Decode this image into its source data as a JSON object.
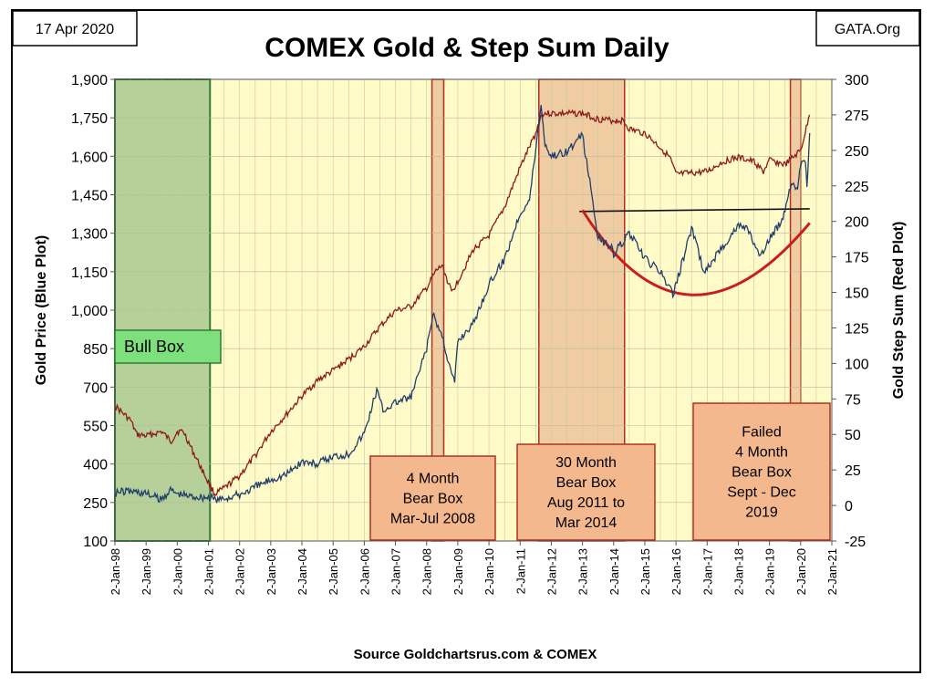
{
  "chart_data": {
    "type": "line",
    "title": "COMEX Gold & Step Sum Daily",
    "date_label": "17 Apr 2020",
    "site_label": "GATA.Org",
    "source_label": "Source Goldchartsrus.com & COMEX",
    "ylabel_left": "Gold Price    (Blue Plot)",
    "ylabel_right": "Gold Step Sum    (Red Plot)",
    "xlabel": "",
    "y_left": {
      "ylim": [
        100,
        1900
      ],
      "ticks": [
        "100",
        "250",
        "400",
        "550",
        "700",
        "850",
        "1,000",
        "1,150",
        "1,300",
        "1,450",
        "1,600",
        "1,750",
        "1,900"
      ]
    },
    "y_right": {
      "ylim": [
        -25,
        300
      ],
      "ticks": [
        "-25",
        "0",
        "25",
        "50",
        "75",
        "100",
        "125",
        "150",
        "175",
        "200",
        "225",
        "250",
        "275",
        "300"
      ]
    },
    "x_range": [
      1998.0,
      2021.0
    ],
    "x_ticks": [
      "2-Jan-98",
      "2-Jan-99",
      "2-Jan-00",
      "2-Jan-01",
      "2-Jan-02",
      "2-Jan-03",
      "2-Jan-04",
      "2-Jan-05",
      "2-Jan-06",
      "2-Jan-07",
      "2-Jan-08",
      "2-Jan-09",
      "2-Jan-10",
      "2-Jan-11",
      "2-Jan-12",
      "2-Jan-13",
      "2-Jan-14",
      "2-Jan-15",
      "2-Jan-16",
      "2-Jan-17",
      "2-Jan-18",
      "2-Jan-19",
      "2-Jan-20",
      "2-Jan-21"
    ],
    "grid": true,
    "colors": {
      "gold": "#1f3d6b",
      "step_sum": "#8b1a1a",
      "plot_bg": "#fffbc8",
      "bull_box": "#a8c890",
      "bear_box": "#e8b890",
      "label_box": "#f4b88e",
      "bull_label": "#7de07d",
      "trend_curve": "#c81e1e",
      "resistance": "#111111"
    },
    "series": [
      {
        "name": "Gold Price (Blue Plot)",
        "axis": "left",
        "x": [
          1998.0,
          1998.5,
          1999.0,
          1999.5,
          1999.75,
          2000.0,
          2000.4,
          2001.0,
          2001.3,
          2002.0,
          2002.5,
          2003.0,
          2003.5,
          2004.0,
          2004.5,
          2005.0,
          2005.5,
          2006.0,
          2006.4,
          2006.6,
          2007.0,
          2007.5,
          2008.0,
          2008.2,
          2008.5,
          2008.8,
          2008.9,
          2009.0,
          2009.5,
          2010.0,
          2010.5,
          2011.0,
          2011.3,
          2011.67,
          2011.8,
          2012.0,
          2012.5,
          2013.0,
          2013.3,
          2013.5,
          2013.9,
          2014.0,
          2014.5,
          2015.0,
          2015.5,
          2015.9,
          2016.0,
          2016.5,
          2016.9,
          2017.0,
          2017.5,
          2018.0,
          2018.3,
          2018.7,
          2019.0,
          2019.4,
          2019.7,
          2019.9,
          2020.0,
          2020.15,
          2020.2,
          2020.29
        ],
        "y": [
          290,
          295,
          285,
          260,
          300,
          285,
          275,
          270,
          260,
          280,
          310,
          340,
          360,
          410,
          400,
          430,
          440,
          520,
          690,
          610,
          640,
          660,
          850,
          980,
          900,
          750,
          720,
          880,
          950,
          1100,
          1200,
          1380,
          1430,
          1800,
          1650,
          1600,
          1620,
          1680,
          1450,
          1280,
          1250,
          1220,
          1300,
          1200,
          1150,
          1060,
          1100,
          1320,
          1150,
          1160,
          1250,
          1330,
          1320,
          1200,
          1280,
          1350,
          1500,
          1480,
          1560,
          1580,
          1480,
          1690
        ]
      },
      {
        "name": "Gold Step Sum (Red Plot)",
        "axis": "right",
        "x": [
          1998.0,
          1998.5,
          1998.7,
          1999.0,
          1999.5,
          1999.8,
          2000.0,
          2000.2,
          2000.5,
          2000.8,
          2001.0,
          2001.2,
          2001.5,
          2002.0,
          2002.5,
          2003.0,
          2003.5,
          2004.0,
          2004.5,
          2005.0,
          2005.5,
          2006.0,
          2006.5,
          2007.0,
          2007.5,
          2008.0,
          2008.3,
          2008.5,
          2008.8,
          2009.0,
          2009.5,
          2010.0,
          2010.5,
          2011.0,
          2011.5,
          2011.7,
          2012.0,
          2012.5,
          2013.0,
          2013.5,
          2014.0,
          2014.3,
          2014.5,
          2015.0,
          2015.5,
          2015.8,
          2016.0,
          2016.5,
          2017.0,
          2017.5,
          2018.0,
          2018.5,
          2018.8,
          2019.0,
          2019.5,
          2020.0,
          2020.29
        ],
        "y": [
          70,
          60,
          50,
          49,
          52,
          45,
          52,
          52,
          38,
          25,
          16,
          8,
          12,
          21,
          35,
          52,
          64,
          77,
          88,
          95,
          103,
          112,
          126,
          137,
          140,
          153,
          165,
          169,
          150,
          158,
          180,
          190,
          210,
          238,
          262,
          276,
          276,
          276,
          276,
          272,
          271,
          271,
          265,
          262,
          252,
          245,
          233,
          234,
          235,
          242,
          245,
          242,
          235,
          243,
          240,
          250,
          275
        ]
      }
    ],
    "annotations": [
      {
        "kind": "shaded_box",
        "label": "Bull Box",
        "x": [
          1998.0,
          2001.05
        ],
        "style": "bull"
      },
      {
        "kind": "shaded_box",
        "label": "4 Month Bear Box Mar-Jul 2008",
        "x": [
          2008.17,
          2008.55
        ],
        "style": "bear"
      },
      {
        "kind": "shaded_box",
        "label": "30 Month Bear Box Aug 2011 to Mar 2014",
        "x": [
          2011.6,
          2014.35
        ],
        "style": "bear"
      },
      {
        "kind": "shaded_box",
        "label": "Failed 4 Month Bear Box Sept - Dec 2019",
        "x": [
          2019.67,
          2020.0
        ],
        "style": "bear"
      },
      {
        "kind": "line",
        "label": "",
        "x": [
          2012.9,
          2020.29
        ],
        "y_left": [
          1385,
          1395
        ]
      },
      {
        "kind": "curve",
        "label": "",
        "x": [
          2013.0,
          2016.25,
          2020.29
        ],
        "y_left": [
          1390,
          1060,
          1340
        ]
      }
    ],
    "labels": {
      "bull": [
        "Bull Box"
      ],
      "bear_2008": [
        "4 Month",
        "Bear Box",
        "Mar-Jul 2008"
      ],
      "bear_2011": [
        "30 Month",
        "Bear Box",
        "Aug 2011 to",
        "Mar 2014"
      ],
      "bear_2019": [
        "Failed",
        "4 Month",
        "Bear Box",
        "Sept - Dec",
        "2019"
      ]
    }
  }
}
